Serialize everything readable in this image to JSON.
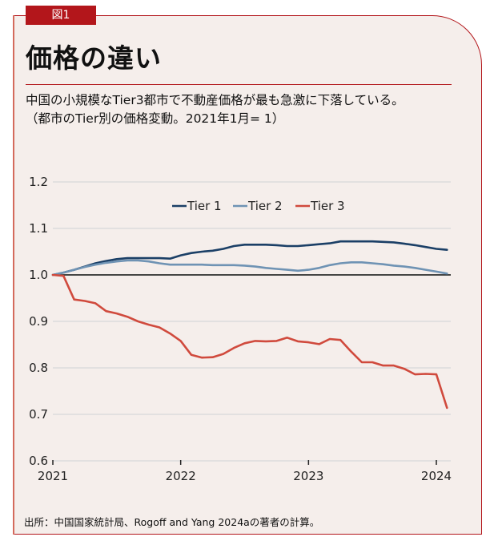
{
  "figure_label": "図1",
  "title": "価格の違い",
  "subtitle_line1": "中国の小規模なTier3都市で不動産価格が最も急激に下落している。",
  "subtitle_line2": "（都市のTier別の価格変動。2021年1月= 1）",
  "source": "出所：中国国家統計局、Rogoff and Yang 2024aの著者の計算。",
  "colors": {
    "frame_border": "#b3161b",
    "label_bg": "#b3161b",
    "background": "#f5eeeb",
    "tier1": "#1b3f66",
    "tier2": "#6f93b4",
    "tier3": "#d04a3d",
    "baseline": "#111111",
    "grid": "#dcdcdc"
  },
  "chart_data": {
    "type": "line",
    "title": "",
    "xlabel": "",
    "ylabel": "",
    "x_start": "2021-01",
    "x_frequency": "monthly",
    "x_ticks": [
      {
        "label": "2021",
        "month_index": 0
      },
      {
        "label": "2022",
        "month_index": 12
      },
      {
        "label": "2023",
        "month_index": 24
      },
      {
        "label": "2024",
        "month_index": 36
      }
    ],
    "xlim": [
      0,
      37
    ],
    "ylim": [
      0.6,
      1.2
    ],
    "y_ticks": [
      "0.6",
      "0.7",
      "0.8",
      "0.9",
      "1.0",
      "1.1",
      "1.2"
    ],
    "y_tick_values": [
      0.6,
      0.7,
      0.8,
      0.9,
      1.0,
      1.1,
      1.2
    ],
    "baseline": 1.0,
    "grid": true,
    "legend_position": "top-center",
    "series": [
      {
        "name": "Tier 1",
        "color_key": "tier1",
        "values": [
          1.0,
          1.005,
          1.011,
          1.018,
          1.025,
          1.03,
          1.034,
          1.036,
          1.036,
          1.036,
          1.036,
          1.035,
          1.042,
          1.047,
          1.05,
          1.052,
          1.056,
          1.062,
          1.065,
          1.065,
          1.065,
          1.064,
          1.062,
          1.062,
          1.064,
          1.066,
          1.068,
          1.072,
          1.072,
          1.072,
          1.072,
          1.071,
          1.07,
          1.067,
          1.064,
          1.06,
          1.056,
          1.054
        ]
      },
      {
        "name": "Tier 2",
        "color_key": "tier2",
        "values": [
          1.0,
          1.005,
          1.011,
          1.017,
          1.022,
          1.026,
          1.029,
          1.031,
          1.031,
          1.029,
          1.025,
          1.022,
          1.022,
          1.022,
          1.022,
          1.021,
          1.021,
          1.021,
          1.02,
          1.018,
          1.015,
          1.013,
          1.011,
          1.009,
          1.011,
          1.015,
          1.021,
          1.025,
          1.027,
          1.027,
          1.025,
          1.023,
          1.02,
          1.018,
          1.015,
          1.011,
          1.007,
          1.003
        ]
      },
      {
        "name": "Tier 3",
        "color_key": "tier3",
        "values": [
          1.0,
          0.998,
          0.947,
          0.944,
          0.939,
          0.922,
          0.917,
          0.91,
          0.9,
          0.893,
          0.887,
          0.874,
          0.858,
          0.828,
          0.822,
          0.823,
          0.83,
          0.843,
          0.853,
          0.858,
          0.857,
          0.858,
          0.865,
          0.857,
          0.855,
          0.851,
          0.862,
          0.86,
          0.835,
          0.812,
          0.812,
          0.805,
          0.805,
          0.798,
          0.786,
          0.787,
          0.786,
          0.714
        ]
      }
    ]
  }
}
